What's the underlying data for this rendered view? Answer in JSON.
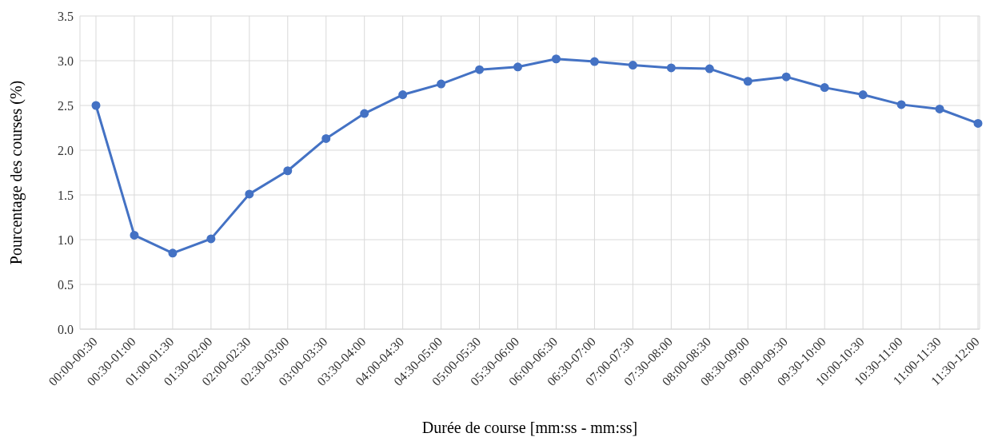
{
  "chart_data": {
    "type": "line",
    "xlabel": "Durée de course [mm:ss - mm:ss]",
    "ylabel": "Pourcentage des courses (%)",
    "categories": [
      "00:00-00:30",
      "00:30-01:00",
      "01:00-01:30",
      "01:30-02:00",
      "02:00-02:30",
      "02:30-03:00",
      "03:00-03:30",
      "03:30-04:00",
      "04:00-04:30",
      "04:30-05:00",
      "05:00-05:30",
      "05:30-06:00",
      "06:00-06:30",
      "06:30-07:00",
      "07:00-07:30",
      "07:30-08:00",
      "08:00-08:30",
      "08:30-09:00",
      "09:00-09:30",
      "09:30-10:00",
      "10:00-10:30",
      "10:30-11:00",
      "11:00-11:30",
      "11:30-12:00"
    ],
    "series": [
      {
        "color": "#4472c4",
        "values": [
          2.5,
          1.05,
          0.85,
          1.01,
          1.51,
          1.77,
          2.13,
          2.41,
          2.62,
          2.74,
          2.9,
          2.93,
          3.02,
          2.99,
          2.95,
          2.92,
          2.91,
          2.77,
          2.82,
          2.7,
          2.62,
          2.51,
          2.46,
          2.3
        ]
      }
    ],
    "ylim": [
      0,
      3.5
    ],
    "yticks": [
      {
        "value": 0,
        "label": "0.0"
      },
      {
        "value": 0.5,
        "label": "0.5"
      },
      {
        "value": 1,
        "label": "1.0"
      },
      {
        "value": 1.5,
        "label": "1.5"
      },
      {
        "value": 2,
        "label": "2.0"
      },
      {
        "value": 2.5,
        "label": "2.5"
      },
      {
        "value": 3,
        "label": "3.0"
      },
      {
        "value": 3.5,
        "label": "3.5"
      }
    ],
    "grid": true,
    "marker": "circle",
    "line_style": "solid"
  }
}
